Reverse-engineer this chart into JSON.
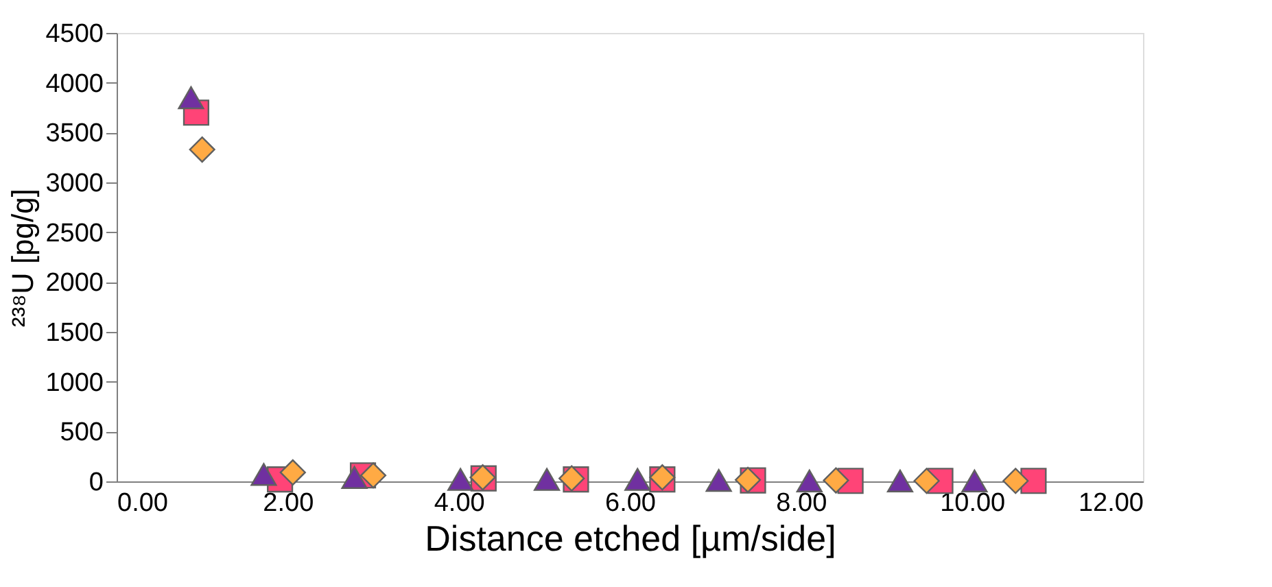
{
  "chart_data": {
    "type": "scatter",
    "xlabel": "Distance etched [µm/side]",
    "ylabel": "²³⁸U [pg/g]",
    "xlim": [
      0,
      12
    ],
    "ylim": [
      0,
      4500
    ],
    "xticks": [
      {
        "value": 0,
        "label": "0.00"
      },
      {
        "value": 2,
        "label": "2.00"
      },
      {
        "value": 4,
        "label": "4.00"
      },
      {
        "value": 6,
        "label": "6.00"
      },
      {
        "value": 8,
        "label": "8.00"
      },
      {
        "value": 10,
        "label": "10.00"
      },
      {
        "value": 12,
        "label": "12.00"
      }
    ],
    "yticks": [
      0,
      500,
      1000,
      1500,
      2000,
      2500,
      3000,
      3500,
      4000,
      4500
    ],
    "grid": false,
    "series": [
      {
        "color": "#ff4477",
        "marker": "square",
        "x": [
          0.93,
          1.91,
          2.88,
          4.29,
          5.37,
          6.38,
          7.44,
          8.58,
          9.63,
          10.72
        ],
        "values": [
          3700,
          20,
          60,
          30,
          20,
          20,
          10,
          5,
          5,
          5
        ]
      },
      {
        "color": "#7030a0",
        "marker": "triangle",
        "x": [
          0.87,
          1.72,
          2.78,
          4.02,
          5.03,
          6.09,
          7.04,
          8.1,
          9.16,
          10.03
        ],
        "values": [
          3850,
          70,
          40,
          20,
          20,
          20,
          10,
          5,
          5,
          5
        ]
      },
      {
        "color": "#ffaa44",
        "marker": "diamond",
        "x": [
          1.0,
          2.06,
          3.0,
          4.28,
          5.32,
          6.38,
          7.38,
          8.41,
          9.47,
          10.51
        ],
        "values": [
          3330,
          90,
          60,
          40,
          30,
          40,
          15,
          10,
          5,
          5
        ]
      }
    ]
  }
}
